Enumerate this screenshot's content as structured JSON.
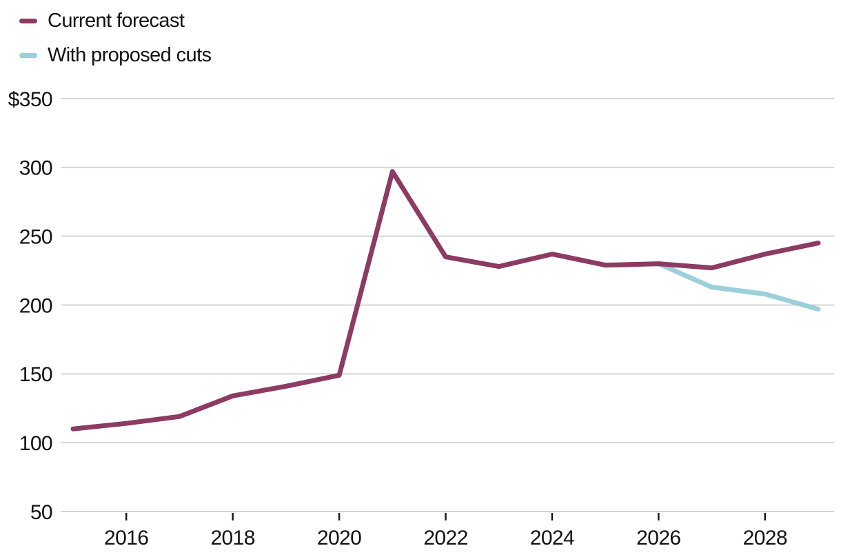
{
  "colors": {
    "background": "#ffffff",
    "text": "#121212",
    "gridline": "#d5d5d5",
    "tick": "#1a1a1a",
    "series_current_forecast": "#8c3b63",
    "series_proposed_cuts": "#9ad0d9"
  },
  "legend": {
    "items": [
      {
        "label": "Current forecast",
        "color": "#8c3b63"
      },
      {
        "label": "With proposed cuts",
        "color": "#9ad0d9"
      }
    ]
  },
  "chart_data": {
    "type": "line",
    "title": "",
    "xlabel": "",
    "ylabel": "",
    "xlim": [
      2015,
      2029
    ],
    "ylim": [
      50,
      350
    ],
    "grid": "horizontal",
    "legend_position": "top-left",
    "y_ticks": [
      {
        "value": 350,
        "label": "$350"
      },
      {
        "value": 300,
        "label": "300"
      },
      {
        "value": 250,
        "label": "250"
      },
      {
        "value": 200,
        "label": "200"
      },
      {
        "value": 150,
        "label": "150"
      },
      {
        "value": 100,
        "label": "100"
      },
      {
        "value": 50,
        "label": "50"
      }
    ],
    "x_ticks": [
      {
        "value": 2016,
        "label": "2016"
      },
      {
        "value": 2018,
        "label": "2018"
      },
      {
        "value": 2020,
        "label": "2020"
      },
      {
        "value": 2022,
        "label": "2022"
      },
      {
        "value": 2024,
        "label": "2024"
      },
      {
        "value": 2026,
        "label": "2026"
      },
      {
        "value": 2028,
        "label": "2028"
      }
    ],
    "series": [
      {
        "name": "Current forecast",
        "color": "#8c3b63",
        "x": [
          2015,
          2016,
          2017,
          2018,
          2019,
          2020,
          2021,
          2022,
          2023,
          2024,
          2025,
          2026,
          2027,
          2028,
          2029
        ],
        "values": [
          110,
          114,
          119,
          134,
          141,
          149,
          297,
          235,
          228,
          237,
          229,
          230,
          227,
          237,
          245
        ]
      },
      {
        "name": "With proposed cuts",
        "color": "#9ad0d9",
        "x": [
          2026,
          2027,
          2028,
          2029
        ],
        "values": [
          230,
          213,
          208,
          197
        ]
      }
    ]
  }
}
